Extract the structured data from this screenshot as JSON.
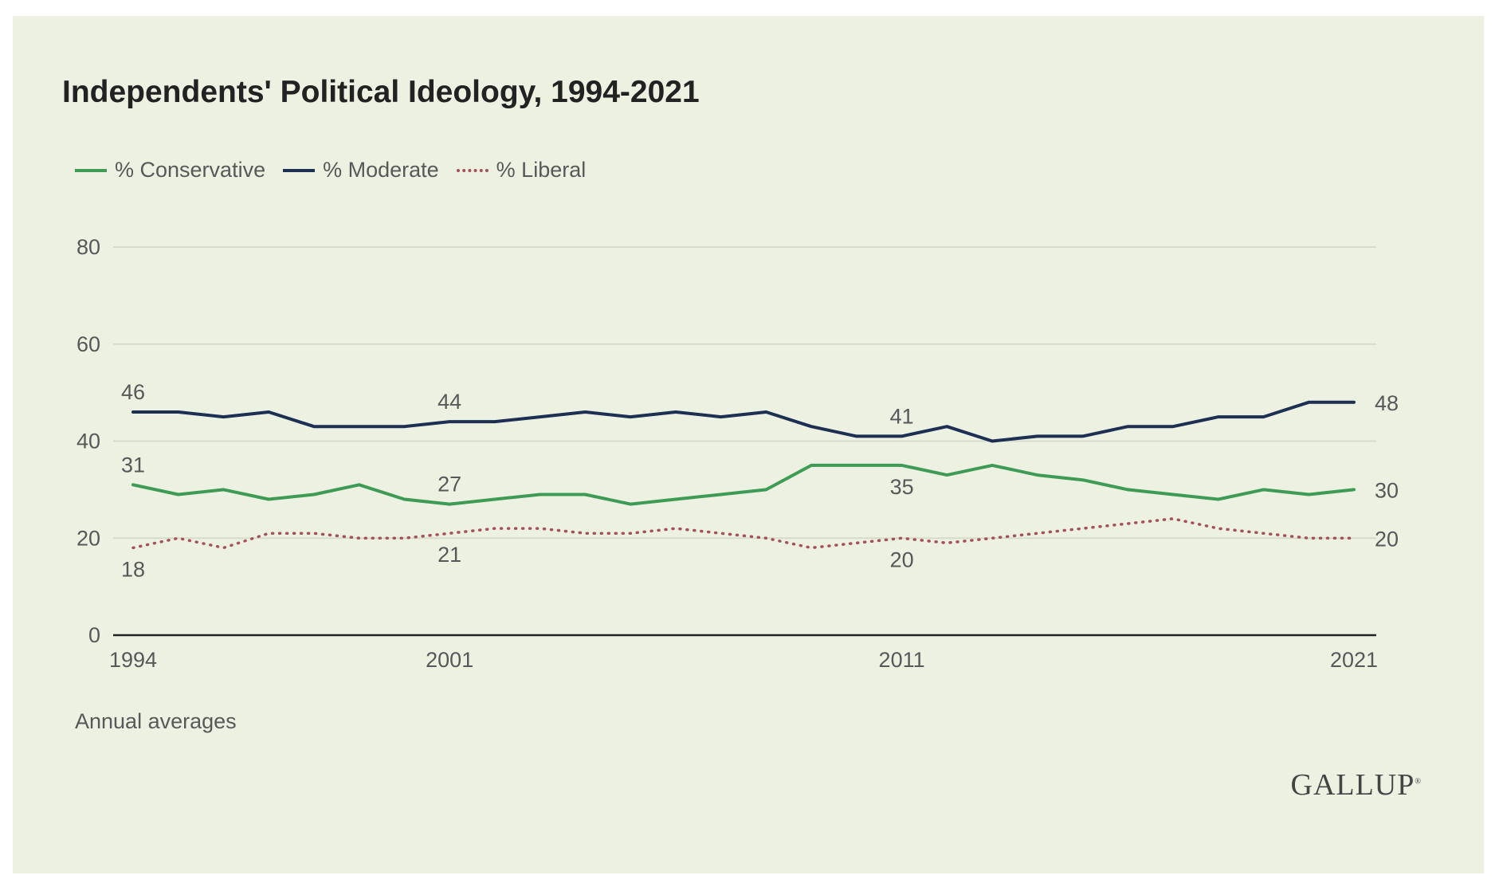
{
  "colors": {
    "background": "#edf1e2",
    "conservative": "#3e9b55",
    "moderate": "#1d2f52",
    "liberal": "#a5505a",
    "grid": "#d6dccb",
    "axis": "#222222",
    "text": "#555a58"
  },
  "footnote": "Annual averages",
  "logo": "GALLUP",
  "chart_data": {
    "type": "line",
    "title": "Independents' Political Ideology, 1994-2021",
    "xlabel": "",
    "ylabel": "",
    "ylim": [
      0,
      80
    ],
    "yticks": [
      0,
      20,
      40,
      60,
      80
    ],
    "xticks": [
      1994,
      2001,
      2011,
      2021
    ],
    "grid": true,
    "legend_position": "top-left",
    "x": [
      1994,
      1995,
      1996,
      1997,
      1998,
      1999,
      2000,
      2001,
      2002,
      2003,
      2004,
      2005,
      2006,
      2007,
      2008,
      2009,
      2010,
      2011,
      2012,
      2013,
      2014,
      2015,
      2016,
      2017,
      2018,
      2019,
      2020,
      2021
    ],
    "series": [
      {
        "name": "% Conservative",
        "color": "#3e9b55",
        "style": "solid",
        "values": [
          31,
          29,
          30,
          28,
          29,
          31,
          28,
          27,
          28,
          29,
          29,
          27,
          28,
          29,
          30,
          35,
          35,
          35,
          33,
          35,
          33,
          32,
          30,
          29,
          28,
          30,
          29,
          30
        ],
        "labels": [
          {
            "year": 1994,
            "text": "31",
            "pos": "above"
          },
          {
            "year": 2001,
            "text": "27",
            "pos": "above"
          },
          {
            "year": 2011,
            "text": "35",
            "pos": "below"
          },
          {
            "year": 2021,
            "text": "30",
            "pos": "right"
          }
        ]
      },
      {
        "name": "% Moderate",
        "color": "#1d2f52",
        "style": "solid",
        "values": [
          46,
          46,
          45,
          46,
          43,
          43,
          43,
          44,
          44,
          45,
          46,
          45,
          46,
          45,
          46,
          43,
          41,
          41,
          43,
          40,
          41,
          41,
          43,
          43,
          45,
          45,
          48,
          48
        ],
        "labels": [
          {
            "year": 1994,
            "text": "46",
            "pos": "above"
          },
          {
            "year": 2001,
            "text": "44",
            "pos": "above"
          },
          {
            "year": 2011,
            "text": "41",
            "pos": "above"
          },
          {
            "year": 2021,
            "text": "48",
            "pos": "right"
          }
        ]
      },
      {
        "name": "% Liberal",
        "color": "#a5505a",
        "style": "dotted",
        "values": [
          18,
          20,
          18,
          21,
          21,
          20,
          20,
          21,
          22,
          22,
          21,
          21,
          22,
          21,
          20,
          18,
          19,
          20,
          19,
          20,
          21,
          22,
          23,
          24,
          22,
          21,
          20,
          20
        ],
        "labels": [
          {
            "year": 1994,
            "text": "18",
            "pos": "below"
          },
          {
            "year": 2001,
            "text": "21",
            "pos": "below"
          },
          {
            "year": 2011,
            "text": "20",
            "pos": "below"
          },
          {
            "year": 2021,
            "text": "20",
            "pos": "right"
          }
        ]
      }
    ]
  }
}
